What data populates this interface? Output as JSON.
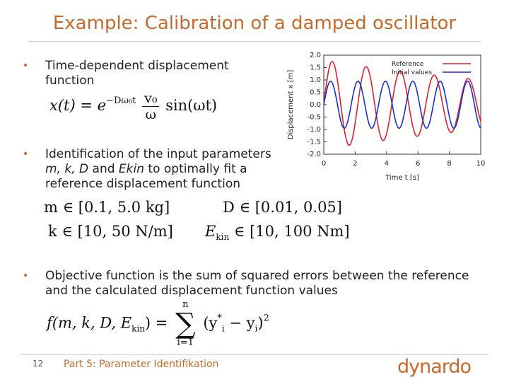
{
  "slide": {
    "title": "Example: Calibration of a damped oscillator",
    "page_number": "12",
    "footer": "Part 5: Parameter Identifikation",
    "logo_text": "dynardo",
    "accent_color": "#c8692a"
  },
  "bullets": [
    {
      "text": "Time-dependent displacement function"
    },
    {
      "text_pre": "Identification of the input parameters ",
      "params": "m, k, D",
      "text_mid": " and ",
      "param2": "Ekin",
      "text_post": " to optimally fit a reference displacement function"
    },
    {
      "text": "Objective function is the sum of squared errors between the reference and the calculated displacement function values"
    }
  ],
  "formulas": {
    "displacement": {
      "lhs": "x(t) = e",
      "exp": "−Dω₀t",
      "num": "v₀",
      "den": "ω",
      "rhs": "sin(ωt)"
    },
    "range_m": "m ∈ [0.1, 5.0 kg]",
    "range_D": "D ∈ [0.01, 0.05]",
    "range_k": "k ∈ [10, 50 N/m]",
    "range_Ekin_lhs": "E",
    "range_Ekin_sub": "kin",
    "range_Ekin_rhs": " ∈ [10, 100 Nm]",
    "objective_lhs_pre": "f(m, k, D, E",
    "objective_lhs_sub": "kin",
    "objective_lhs_post": ") = ",
    "sum_top": "n",
    "sum_bot": "i=1",
    "sum_sig": "∑",
    "objective_term": "(y",
    "objective_term_sup": "*",
    "objective_term_sub": "i",
    "objective_term_mid": " − y",
    "objective_term_sub2": "i",
    "objective_term_end": ")",
    "objective_power": "2"
  },
  "chart_data": {
    "type": "line",
    "xlabel": "Time t [s]",
    "ylabel": "Displacement x [m]",
    "xlim": [
      0,
      10
    ],
    "ylim": [
      -2.0,
      2.0
    ],
    "xticks": [
      "0",
      "2",
      "4",
      "6",
      "8",
      "10"
    ],
    "yticks": [
      "2.0",
      "1.5",
      "1.0",
      "0.5",
      "0.0",
      "-0.5",
      "-1.0",
      "-1.5",
      "-2.0"
    ],
    "legend_position": "top-right",
    "series": [
      {
        "name": "Reference",
        "color": "#e0202a",
        "amplitude": 1.8,
        "omega": 2.9,
        "damping": 0.02
      },
      {
        "name": "Initial values",
        "color": "#1a2fd0",
        "amplitude": 0.95,
        "omega": 3.6,
        "damping": 0.0
      }
    ]
  }
}
